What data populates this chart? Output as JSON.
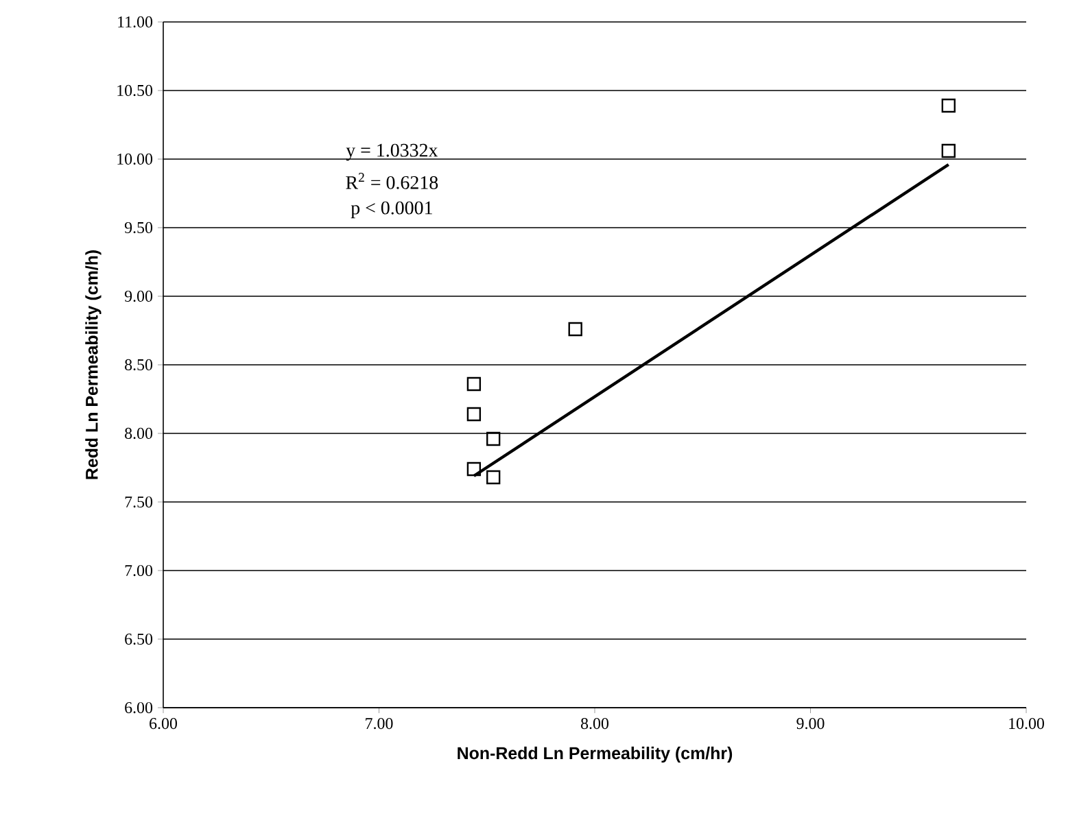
{
  "chart_data": {
    "type": "scatter",
    "xlabel": "Non-Redd Ln Permeability (cm/hr)",
    "ylabel": "Redd Ln Permeability (cm/h)",
    "xlim": [
      6,
      10
    ],
    "xticks": [
      {
        "value": 6,
        "label": "6.00"
      },
      {
        "value": 7,
        "label": "7.00"
      },
      {
        "value": 8,
        "label": "8.00"
      },
      {
        "value": 9,
        "label": "9.00"
      },
      {
        "value": 10,
        "label": "10.00"
      }
    ],
    "ylim": [
      6,
      11
    ],
    "yticks": [
      {
        "value": 6,
        "label": "6.00"
      },
      {
        "value": 6.5,
        "label": "6.50"
      },
      {
        "value": 7,
        "label": "7.00"
      },
      {
        "value": 7.5,
        "label": "7.50"
      },
      {
        "value": 8,
        "label": "8.00"
      },
      {
        "value": 8.5,
        "label": "8.50"
      },
      {
        "value": 9,
        "label": "9.00"
      },
      {
        "value": 9.5,
        "label": "9.50"
      },
      {
        "value": 10,
        "label": "10.00"
      },
      {
        "value": 10.5,
        "label": "10.50"
      },
      {
        "value": 11,
        "label": "11.00"
      }
    ],
    "grid": "y",
    "series": [
      {
        "marker": "square",
        "color": "#000000",
        "x": [
          7.44,
          7.44,
          7.91,
          7.53,
          7.44,
          7.53,
          9.64,
          9.64
        ],
        "values": [
          8.36,
          8.14,
          8.76,
          7.96,
          7.74,
          7.68,
          10.39,
          10.06
        ]
      },
      {
        "type": "line",
        "marker": "none",
        "color": "#000000",
        "x": [
          7.44,
          9.64
        ],
        "values": [
          7.69,
          9.96
        ]
      }
    ],
    "annotations": [
      "y = 1.0332x",
      "R$^{2}$ = 0.6218",
      "p < 0.0001"
    ]
  }
}
